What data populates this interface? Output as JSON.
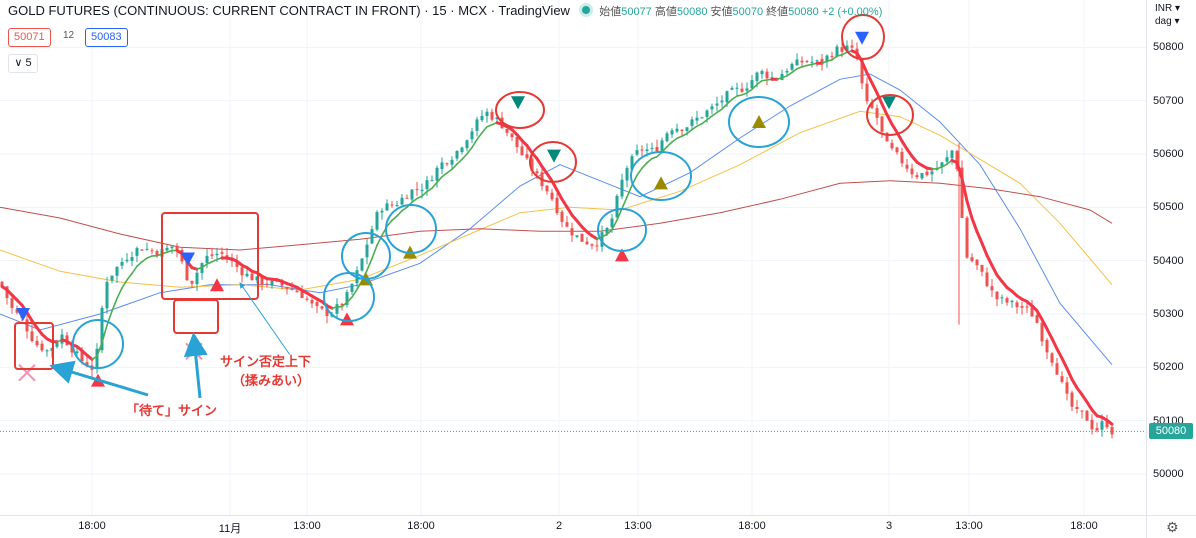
{
  "header": {
    "title": "GOLD FUTURES (CONTINUOUS: CURRENT CONTRACT IN FRONT) · 15 · MCX · TradingView",
    "ohlc": [
      {
        "label": "始値",
        "value": "50077"
      },
      {
        "label": "高値",
        "value": "50080"
      },
      {
        "label": "安値",
        "value": "50070"
      },
      {
        "label": "終値",
        "value": "50080"
      }
    ],
    "change": "+2 (+0.00%)",
    "bid": "50071",
    "spread": "12",
    "ask": "50083",
    "indicator_toggle": "∨ 5"
  },
  "price_axis": {
    "currency": "INR",
    "unit": "dag",
    "ticks": [
      "50800",
      "50700",
      "50600",
      "50500",
      "50400",
      "50300",
      "50200",
      "50100",
      "50000"
    ],
    "last_price": "50080"
  },
  "time_axis": {
    "ticks": [
      "18:00",
      "11月",
      "13:00",
      "18:00",
      "2",
      "13:00",
      "18:00",
      "3",
      "13:00",
      "18:00"
    ]
  },
  "annotations": {
    "note_range": "サイン否定上下",
    "note_range_sub": "（揉みあい）",
    "note_wait": "「待て」サイン"
  },
  "colors": {
    "bull": "#26a69a",
    "bear": "#ef5350",
    "ema_fast_green": "#4caf50",
    "ema_fast_red": "#f23645",
    "ma_blue": "#5b8def",
    "ma_yellow": "#f5c04a",
    "ma_red": "#c0504d",
    "highlight_red": "#e53935",
    "highlight_blue": "#29a3d6"
  },
  "chart_data": {
    "type": "candlestick",
    "symbol": "GOLD FUTURES",
    "interval": "15",
    "ylim": [
      49970,
      50870
    ],
    "anchors": [
      [
        0,
        50360
      ],
      [
        12,
        50310
      ],
      [
        22,
        50290
      ],
      [
        35,
        50245
      ],
      [
        48,
        50230
      ],
      [
        62,
        50260
      ],
      [
        80,
        50215
      ],
      [
        95,
        50195
      ],
      [
        105,
        50360
      ],
      [
        125,
        50405
      ],
      [
        140,
        50425
      ],
      [
        160,
        50415
      ],
      [
        175,
        50430
      ],
      [
        190,
        50355
      ],
      [
        205,
        50405
      ],
      [
        220,
        50415
      ],
      [
        230,
        50400
      ],
      [
        245,
        50375
      ],
      [
        260,
        50360
      ],
      [
        280,
        50355
      ],
      [
        300,
        50340
      ],
      [
        315,
        50310
      ],
      [
        330,
        50300
      ],
      [
        345,
        50325
      ],
      [
        360,
        50390
      ],
      [
        370,
        50450
      ],
      [
        380,
        50500
      ],
      [
        395,
        50505
      ],
      [
        410,
        50530
      ],
      [
        425,
        50540
      ],
      [
        440,
        50580
      ],
      [
        455,
        50600
      ],
      [
        470,
        50640
      ],
      [
        485,
        50680
      ],
      [
        500,
        50660
      ],
      [
        515,
        50620
      ],
      [
        525,
        50590
      ],
      [
        540,
        50550
      ],
      [
        550,
        50525
      ],
      [
        565,
        50465
      ],
      [
        580,
        50440
      ],
      [
        595,
        50430
      ],
      [
        610,
        50465
      ],
      [
        625,
        50570
      ],
      [
        640,
        50610
      ],
      [
        655,
        50605
      ],
      [
        670,
        50650
      ],
      [
        685,
        50650
      ],
      [
        700,
        50670
      ],
      [
        715,
        50690
      ],
      [
        730,
        50715
      ],
      [
        745,
        50725
      ],
      [
        760,
        50755
      ],
      [
        775,
        50740
      ],
      [
        790,
        50765
      ],
      [
        805,
        50775
      ],
      [
        820,
        50770
      ],
      [
        835,
        50795
      ],
      [
        850,
        50800
      ],
      [
        858,
        50775
      ],
      [
        865,
        50695
      ],
      [
        875,
        50680
      ],
      [
        885,
        50620
      ],
      [
        900,
        50590
      ],
      [
        915,
        50560
      ],
      [
        930,
        50565
      ],
      [
        945,
        50585
      ],
      [
        955,
        50615
      ],
      [
        962,
        50480
      ],
      [
        965,
        50410
      ],
      [
        975,
        50395
      ],
      [
        985,
        50365
      ],
      [
        995,
        50330
      ],
      [
        1010,
        50320
      ],
      [
        1025,
        50310
      ],
      [
        1035,
        50295
      ],
      [
        1045,
        50240
      ],
      [
        1055,
        50205
      ],
      [
        1065,
        50150
      ],
      [
        1075,
        50115
      ],
      [
        1085,
        50110
      ],
      [
        1095,
        50080
      ],
      [
        1105,
        50100
      ],
      [
        1112,
        50080
      ]
    ],
    "moving_averages": {
      "blue": [
        [
          0,
          50300
        ],
        [
          40,
          50270
        ],
        [
          100,
          50300
        ],
        [
          160,
          50340
        ],
        [
          210,
          50355
        ],
        [
          270,
          50355
        ],
        [
          320,
          50340
        ],
        [
          360,
          50355
        ],
        [
          420,
          50395
        ],
        [
          470,
          50460
        ],
        [
          520,
          50540
        ],
        [
          560,
          50580
        ],
        [
          600,
          50550
        ],
        [
          640,
          50520
        ],
        [
          690,
          50565
        ],
        [
          740,
          50630
        ],
        [
          790,
          50690
        ],
        [
          840,
          50740
        ],
        [
          870,
          50750
        ],
        [
          900,
          50720
        ],
        [
          940,
          50660
        ],
        [
          980,
          50580
        ],
        [
          1020,
          50460
        ],
        [
          1060,
          50320
        ],
        [
          1112,
          50205
        ]
      ],
      "yellow": [
        [
          0,
          50420
        ],
        [
          60,
          50380
        ],
        [
          120,
          50360
        ],
        [
          180,
          50350
        ],
        [
          240,
          50355
        ],
        [
          300,
          50345
        ],
        [
          360,
          50365
        ],
        [
          420,
          50410
        ],
        [
          470,
          50450
        ],
        [
          520,
          50490
        ],
        [
          570,
          50500
        ],
        [
          620,
          50495
        ],
        [
          680,
          50530
        ],
        [
          740,
          50580
        ],
        [
          800,
          50640
        ],
        [
          860,
          50680
        ],
        [
          900,
          50670
        ],
        [
          940,
          50635
        ],
        [
          980,
          50590
        ],
        [
          1020,
          50545
        ],
        [
          1060,
          50470
        ],
        [
          1112,
          50355
        ]
      ],
      "red": [
        [
          0,
          50500
        ],
        [
          60,
          50480
        ],
        [
          120,
          50450
        ],
        [
          180,
          50425
        ],
        [
          240,
          50420
        ],
        [
          300,
          50430
        ],
        [
          360,
          50440
        ],
        [
          420,
          50455
        ],
        [
          480,
          50460
        ],
        [
          540,
          50455
        ],
        [
          600,
          50455
        ],
        [
          660,
          50470
        ],
        [
          720,
          50490
        ],
        [
          780,
          50515
        ],
        [
          840,
          50545
        ],
        [
          890,
          50550
        ],
        [
          940,
          50545
        ],
        [
          990,
          50535
        ],
        [
          1040,
          50520
        ],
        [
          1090,
          50495
        ],
        [
          1112,
          50470
        ]
      ]
    },
    "signals": [
      {
        "type": "sell",
        "x": 23,
        "price": 50300
      },
      {
        "type": "buy",
        "x": 98,
        "price": 50175
      },
      {
        "type": "sell",
        "x": 188,
        "price": 50404
      },
      {
        "type": "buy",
        "x": 217,
        "price": 50354
      },
      {
        "type": "buy",
        "x": 347,
        "price": 50290
      },
      {
        "type": "buy",
        "x": 366,
        "price": 50365
      },
      {
        "type": "buy",
        "x": 410,
        "price": 50415
      },
      {
        "type": "sell",
        "x": 518,
        "price": 50697
      },
      {
        "type": "sell",
        "x": 554,
        "price": 50597
      },
      {
        "type": "buy",
        "x": 622,
        "price": 50410
      },
      {
        "type": "buy",
        "x": 661,
        "price": 50545
      },
      {
        "type": "buy",
        "x": 759,
        "price": 50660
      },
      {
        "type": "sell",
        "x": 862,
        "price": 50818
      },
      {
        "type": "sell",
        "x": 889,
        "price": 50697
      }
    ],
    "wait_signs": [
      {
        "x": 27,
        "price": 50190
      },
      {
        "x": 194,
        "price": 50230
      }
    ]
  }
}
